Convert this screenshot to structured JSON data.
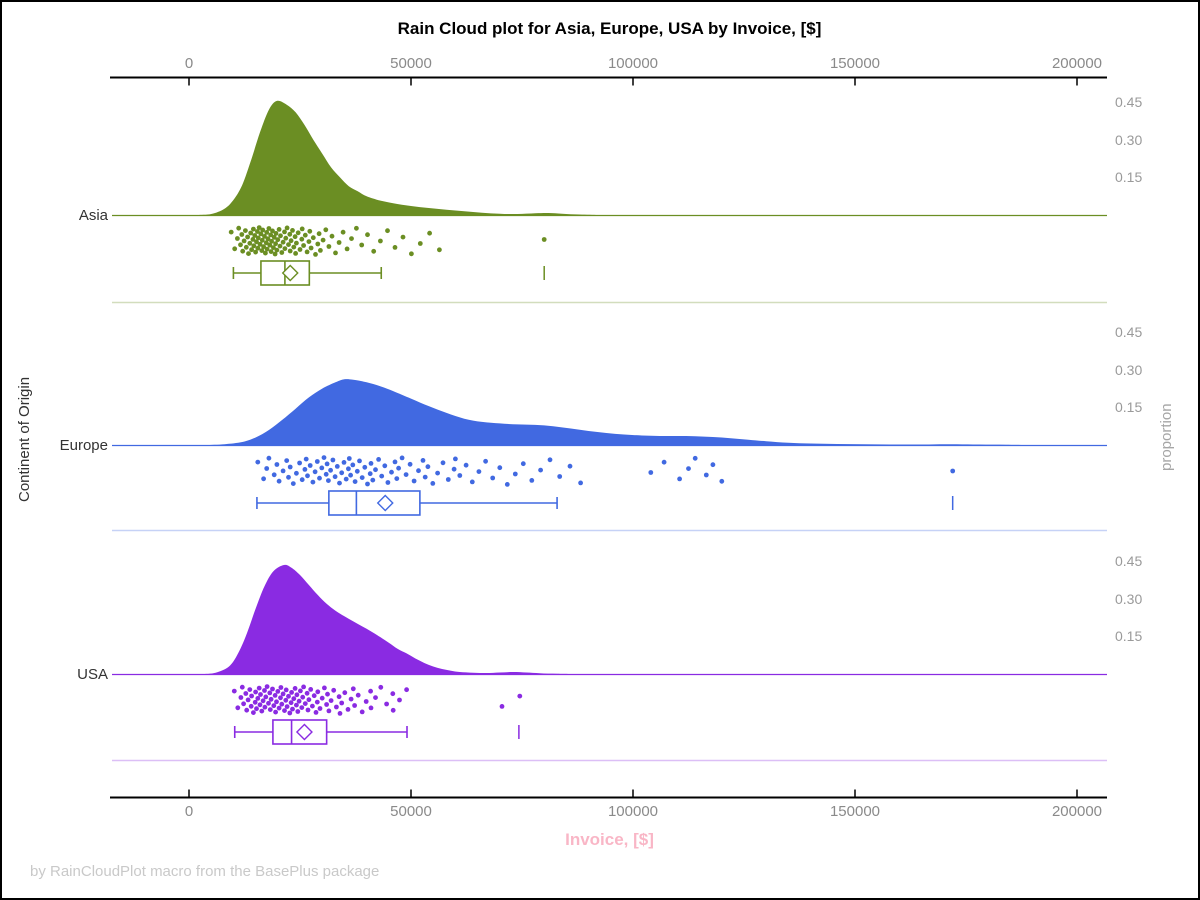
{
  "title": "Rain Cloud plot for Asia, Europe, USA by Invoice, [$]",
  "footnote": "by RainCloudPlot macro from the BasePlus package",
  "x_axis": {
    "label": "Invoice, [$]",
    "label_color": "#F9B6C6",
    "ticks": [
      "0",
      "50000",
      "100000",
      "150000",
      "200000"
    ],
    "tick_values": [
      0,
      50000,
      100000,
      150000,
      200000
    ],
    "min": 0,
    "max": 200000
  },
  "y_axis_left": {
    "label": "Continent of Origin"
  },
  "y_axis_right": {
    "label": "proportion",
    "ticks": [
      "0.45",
      "0.30",
      "0.15"
    ],
    "tick_values": [
      0.45,
      0.3,
      0.15
    ]
  },
  "chart_data": {
    "type": "raincloud",
    "xlabel": "Invoice, [$]",
    "ylabel_left": "Continent of Origin",
    "ylabel_right": "proportion",
    "x_range": [
      0,
      200000
    ],
    "proportion_ticks": [
      0.15,
      0.3,
      0.45
    ],
    "series": [
      {
        "name": "Asia",
        "color": "#6B8E23",
        "density": [
          [
            2000,
            0
          ],
          [
            5000,
            0.004
          ],
          [
            8000,
            0.025
          ],
          [
            10000,
            0.06
          ],
          [
            12000,
            0.12
          ],
          [
            14000,
            0.22
          ],
          [
            16000,
            0.33
          ],
          [
            18000,
            0.42
          ],
          [
            19800,
            0.455
          ],
          [
            22000,
            0.44
          ],
          [
            24000,
            0.41
          ],
          [
            26000,
            0.36
          ],
          [
            28000,
            0.3
          ],
          [
            30000,
            0.245
          ],
          [
            32000,
            0.19
          ],
          [
            34000,
            0.15
          ],
          [
            36000,
            0.115
          ],
          [
            38000,
            0.095
          ],
          [
            40000,
            0.075
          ],
          [
            43000,
            0.058
          ],
          [
            46000,
            0.047
          ],
          [
            50000,
            0.036
          ],
          [
            54000,
            0.028
          ],
          [
            58000,
            0.021
          ],
          [
            62000,
            0.015
          ],
          [
            66000,
            0.009
          ],
          [
            70000,
            0.005
          ],
          [
            74000,
            0.004
          ],
          [
            78000,
            0.007
          ],
          [
            81000,
            0.008
          ],
          [
            84000,
            0.005
          ],
          [
            88000,
            0.002
          ],
          [
            92000,
            0
          ]
        ],
        "points": [
          9500,
          10300,
          10900,
          11200,
          11600,
          11900,
          12100,
          12400,
          12700,
          12900,
          13200,
          13400,
          13700,
          13900,
          14100,
          14400,
          14500,
          14600,
          14800,
          15000,
          15200,
          15400,
          15500,
          15600,
          15800,
          16000,
          16200,
          16400,
          16500,
          16600,
          16800,
          17000,
          17200,
          17400,
          17500,
          17600,
          17800,
          18000,
          18200,
          18400,
          18500,
          18600,
          18800,
          19000,
          19200,
          19400,
          19500,
          19600,
          19800,
          20000,
          20300,
          20500,
          20600,
          20900,
          21200,
          21500,
          21600,
          21800,
          22100,
          22400,
          22700,
          22800,
          23000,
          23300,
          23600,
          23900,
          24000,
          24200,
          24600,
          25000,
          25400,
          25500,
          25800,
          26200,
          26600,
          27000,
          27200,
          27500,
          28000,
          28500,
          29000,
          29300,
          29600,
          30200,
          30800,
          31500,
          32200,
          33000,
          33800,
          34700,
          35600,
          36600,
          37700,
          38900,
          40200,
          41600,
          43100,
          44700,
          46400,
          48200,
          50100,
          52100,
          54200,
          56400,
          80000
        ],
        "box": {
          "low": 10000,
          "q1": 16200,
          "median": 21600,
          "mean": 22800,
          "q3": 27100,
          "high": 43300,
          "outliers": [
            80000
          ]
        }
      },
      {
        "name": "Europe",
        "color": "#4169E1",
        "density": [
          [
            4000,
            0
          ],
          [
            8000,
            0.003
          ],
          [
            12000,
            0.012
          ],
          [
            15000,
            0.03
          ],
          [
            18000,
            0.06
          ],
          [
            21000,
            0.1
          ],
          [
            24000,
            0.145
          ],
          [
            27000,
            0.19
          ],
          [
            30000,
            0.225
          ],
          [
            33000,
            0.25
          ],
          [
            35000,
            0.262
          ],
          [
            37000,
            0.26
          ],
          [
            40000,
            0.25
          ],
          [
            43000,
            0.235
          ],
          [
            46000,
            0.215
          ],
          [
            50000,
            0.185
          ],
          [
            54000,
            0.155
          ],
          [
            58000,
            0.128
          ],
          [
            62000,
            0.105
          ],
          [
            66000,
            0.092
          ],
          [
            70000,
            0.086
          ],
          [
            74000,
            0.082
          ],
          [
            78000,
            0.08
          ],
          [
            82000,
            0.075
          ],
          [
            86000,
            0.066
          ],
          [
            90000,
            0.056
          ],
          [
            94000,
            0.048
          ],
          [
            98000,
            0.042
          ],
          [
            102000,
            0.038
          ],
          [
            106000,
            0.036
          ],
          [
            110000,
            0.036
          ],
          [
            114000,
            0.035
          ],
          [
            118000,
            0.032
          ],
          [
            122000,
            0.027
          ],
          [
            126000,
            0.021
          ],
          [
            130000,
            0.015
          ],
          [
            135000,
            0.009
          ],
          [
            140000,
            0.006
          ],
          [
            146000,
            0.004
          ],
          [
            152000,
            0.003
          ],
          [
            158000,
            0.002
          ],
          [
            164000,
            0.002
          ],
          [
            169000,
            0.003
          ],
          [
            173000,
            0.003
          ],
          [
            178000,
            0.002
          ],
          [
            184000,
            0.001
          ],
          [
            190000,
            0
          ]
        ],
        "points": [
          15500,
          16800,
          17500,
          18000,
          19200,
          19800,
          20300,
          21200,
          22000,
          22400,
          22800,
          23500,
          24200,
          24900,
          25500,
          26100,
          26400,
          26700,
          27300,
          27900,
          28400,
          28900,
          29400,
          29900,
          30400,
          30900,
          31100,
          31400,
          31900,
          32400,
          32900,
          33400,
          33900,
          34400,
          34900,
          35400,
          35900,
          36100,
          36400,
          36900,
          37400,
          37900,
          38400,
          39000,
          39600,
          40200,
          40800,
          41000,
          41400,
          42000,
          42700,
          43400,
          44100,
          44800,
          45600,
          46400,
          46800,
          47200,
          48000,
          48900,
          49800,
          50700,
          51700,
          52700,
          53200,
          53800,
          54900,
          56000,
          57200,
          58400,
          59700,
          60000,
          61000,
          62400,
          63800,
          65300,
          66800,
          68400,
          70000,
          71700,
          73500,
          75300,
          77200,
          79200,
          81300,
          83500,
          85800,
          88200,
          104000,
          107000,
          110500,
          112500,
          114000,
          116500,
          118000,
          120000,
          172000
        ],
        "box": {
          "low": 15300,
          "q1": 31500,
          "median": 37700,
          "mean": 44200,
          "q3": 52000,
          "high": 82900,
          "outliers": [
            172000
          ]
        }
      },
      {
        "name": "USA",
        "color": "#8A2BE2",
        "density": [
          [
            3000,
            0
          ],
          [
            6000,
            0.005
          ],
          [
            9000,
            0.03
          ],
          [
            11000,
            0.08
          ],
          [
            13000,
            0.16
          ],
          [
            15000,
            0.26
          ],
          [
            17000,
            0.35
          ],
          [
            19000,
            0.41
          ],
          [
            21400,
            0.435
          ],
          [
            23000,
            0.425
          ],
          [
            25000,
            0.395
          ],
          [
            27000,
            0.355
          ],
          [
            29000,
            0.315
          ],
          [
            31000,
            0.28
          ],
          [
            33000,
            0.252
          ],
          [
            35000,
            0.23
          ],
          [
            37000,
            0.21
          ],
          [
            39000,
            0.19
          ],
          [
            41000,
            0.17
          ],
          [
            43000,
            0.148
          ],
          [
            45000,
            0.125
          ],
          [
            47000,
            0.1
          ],
          [
            49000,
            0.082
          ],
          [
            51000,
            0.062
          ],
          [
            53000,
            0.044
          ],
          [
            55000,
            0.03
          ],
          [
            57000,
            0.02
          ],
          [
            59000,
            0.013
          ],
          [
            61000,
            0.008
          ],
          [
            64000,
            0.005
          ],
          [
            67000,
            0.004
          ],
          [
            70000,
            0.006
          ],
          [
            73000,
            0.008
          ],
          [
            76000,
            0.006
          ],
          [
            79000,
            0.003
          ],
          [
            83000,
            0.001
          ],
          [
            88000,
            0
          ]
        ],
        "points": [
          10200,
          11000,
          11700,
          12000,
          12300,
          12800,
          13000,
          13300,
          13700,
          14000,
          14100,
          14500,
          14900,
          15000,
          15200,
          15500,
          15800,
          16000,
          16100,
          16400,
          16700,
          17000,
          17100,
          17300,
          17600,
          17900,
          18200,
          18300,
          18500,
          18800,
          19100,
          19400,
          19500,
          19700,
          20000,
          20300,
          20600,
          20700,
          20900,
          21200,
          21500,
          21800,
          21900,
          22100,
          22400,
          22700,
          23000,
          23100,
          23300,
          23600,
          23900,
          24200,
          24300,
          24500,
          24800,
          25100,
          25400,
          25600,
          25800,
          26200,
          26600,
          26800,
          27000,
          27400,
          27800,
          28200,
          28600,
          28900,
          29000,
          29500,
          30000,
          30500,
          31000,
          31200,
          31500,
          32000,
          32600,
          33200,
          33800,
          34000,
          34400,
          35100,
          35800,
          36500,
          37000,
          37300,
          38100,
          39000,
          39900,
          40900,
          41000,
          42000,
          43200,
          44500,
          45900,
          46000,
          47400,
          49000,
          70500,
          74500
        ],
        "box": {
          "low": 10300,
          "q1": 18900,
          "median": 23100,
          "mean": 26000,
          "q3": 31000,
          "high": 49100,
          "outliers": [
            74300
          ]
        }
      }
    ]
  }
}
